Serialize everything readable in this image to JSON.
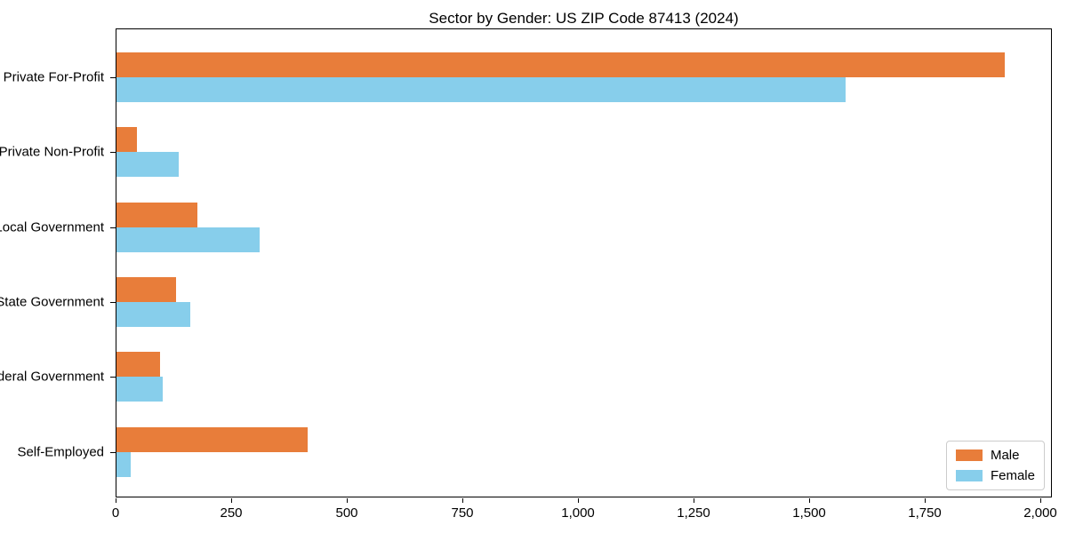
{
  "chart_data": {
    "type": "bar",
    "orientation": "horizontal",
    "title": "Sector by Gender: US ZIP Code 87413 (2024)",
    "categories": [
      "Private For-Profit",
      "Private Non-Profit",
      "Local Government",
      "State Government",
      "Federal Government",
      "Self-Employed"
    ],
    "series": [
      {
        "name": "Male",
        "color": "#e87d3a",
        "values": [
          1925,
          45,
          175,
          130,
          95,
          415
        ]
      },
      {
        "name": "Female",
        "color": "#87ceeb",
        "values": [
          1580,
          135,
          310,
          160,
          100,
          30
        ]
      }
    ],
    "xlabel": "",
    "ylabel": "",
    "xlim": [
      0,
      2025
    ],
    "xticks": [
      0,
      250,
      500,
      750,
      1000,
      1250,
      1500,
      1750,
      2000
    ],
    "xtick_labels": [
      "0",
      "250",
      "500",
      "750",
      "1,000",
      "1,250",
      "1,500",
      "1,750",
      "2,000"
    ],
    "grid": false,
    "legend": {
      "position": "lower-right",
      "entries": [
        "Male",
        "Female"
      ]
    }
  },
  "colors": {
    "background": "#ffffff",
    "axis": "#000000",
    "text": "#000000",
    "legend_border": "#cccccc",
    "male": "#e87d3a",
    "female": "#87ceeb"
  }
}
